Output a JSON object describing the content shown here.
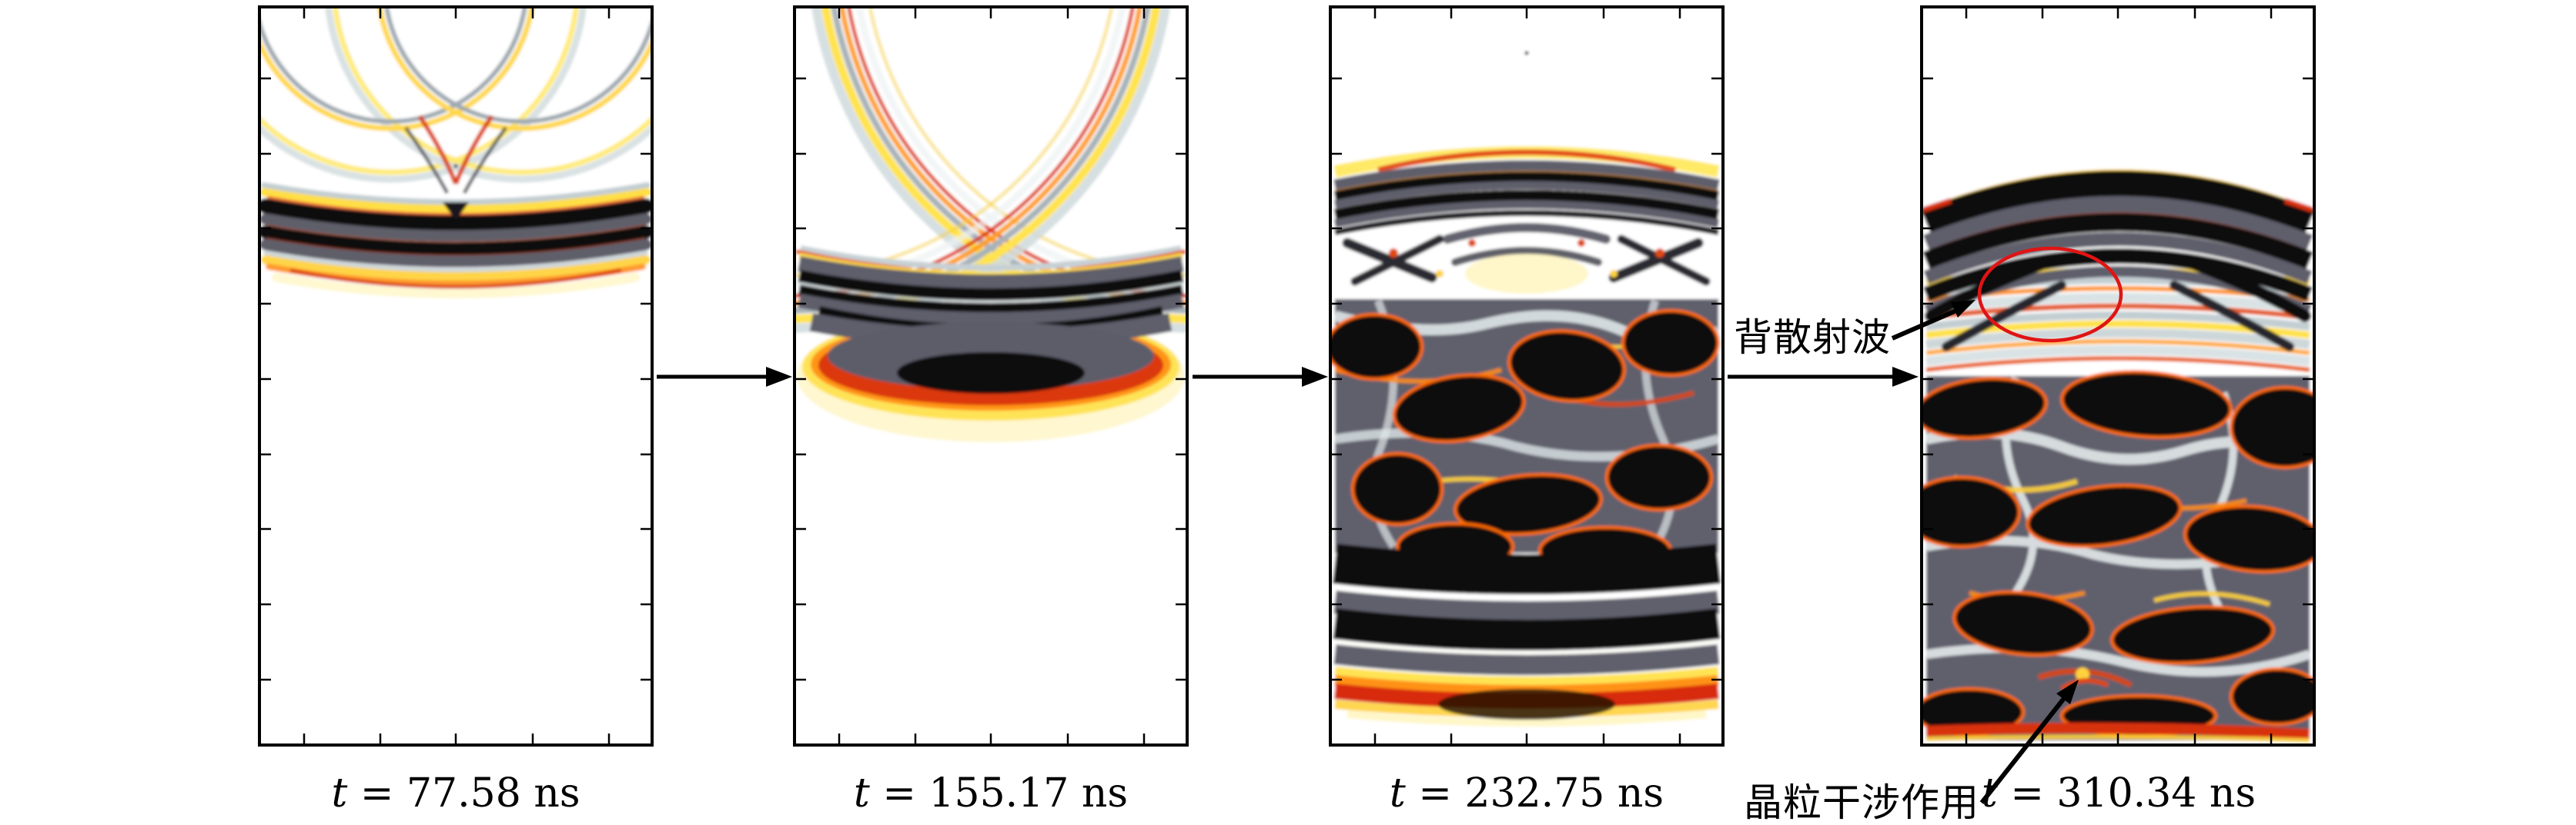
{
  "figure": {
    "type": "ultrasonic wave propagation simulation time sequence",
    "flow_direction": "left-to-right",
    "time_unit": "ns",
    "times_ns": [
      77.58,
      155.17,
      232.75,
      310.34
    ]
  },
  "panels": [
    {
      "caption": "t = 77.58 ns"
    },
    {
      "caption": "t = 155.17 ns"
    },
    {
      "caption": "t = 232.75 ns"
    },
    {
      "caption": "t = 310.34 ns"
    }
  ],
  "annotations": {
    "backscatter": "背散射波",
    "grain_interference": "晶粒干涉作用"
  },
  "colors": {
    "background": "#ffffff",
    "axis": "#000000",
    "wave_black": "#0b0b0d",
    "wave_slate": "#5f5f6c",
    "wave_pale_blue": "#c9d3d6",
    "wave_yellow": "#ffe14a",
    "wave_orange": "#ff9d1e",
    "wave_red": "#d8300c",
    "highlight_ellipse_red": "#e01414"
  }
}
